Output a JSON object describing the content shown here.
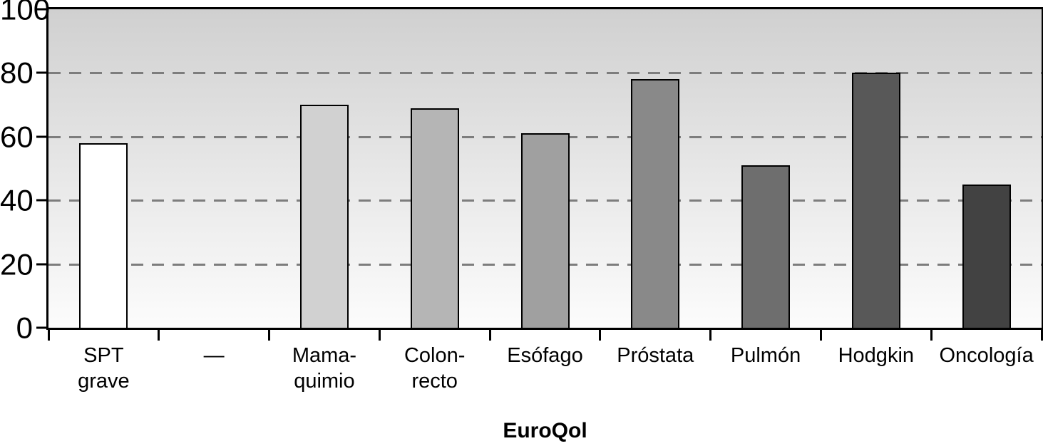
{
  "chart_data": {
    "type": "bar",
    "title": "",
    "xlabel": "EuroQol",
    "ylabel": "",
    "ylim": [
      0,
      100
    ],
    "ytick_labels": [
      "0",
      "20",
      "40",
      "60",
      "80",
      "100"
    ],
    "yticks": [
      0,
      20,
      40,
      60,
      80,
      100
    ],
    "gridlines": [
      20,
      40,
      60,
      80
    ],
    "grid_style": "horizontal dashed gray lines at 20/40/60/80",
    "legend": "none",
    "categories": [
      "SPT grave",
      "—",
      "Mama-quimio",
      "Colon-recto",
      "Esófago",
      "Próstata",
      "Pulmón",
      "Hodgkin",
      "Oncología"
    ],
    "label_lines": [
      [
        "SPT",
        "grave"
      ],
      [
        "—"
      ],
      [
        "Mama-",
        "quimio"
      ],
      [
        "Colon-",
        "recto"
      ],
      [
        "Esófago"
      ],
      [
        "Próstata"
      ],
      [
        "Pulmón"
      ],
      [
        "Hodgkin"
      ],
      [
        "Oncología"
      ]
    ],
    "values": [
      58,
      null,
      70,
      69,
      61,
      78,
      51,
      80,
      45
    ],
    "bar_colors": [
      "#ffffff",
      null,
      "#d1d1d1",
      "#b5b5b5",
      "#a0a0a0",
      "#898989",
      "#6e6e6e",
      "#585858",
      "#424242"
    ],
    "bar_border_color": "#000000",
    "plot_background_gradient": [
      "#d0d0d0",
      "#fcfcfc"
    ],
    "gridline_color": "#7d7d7d",
    "axis_color": "#000000"
  }
}
